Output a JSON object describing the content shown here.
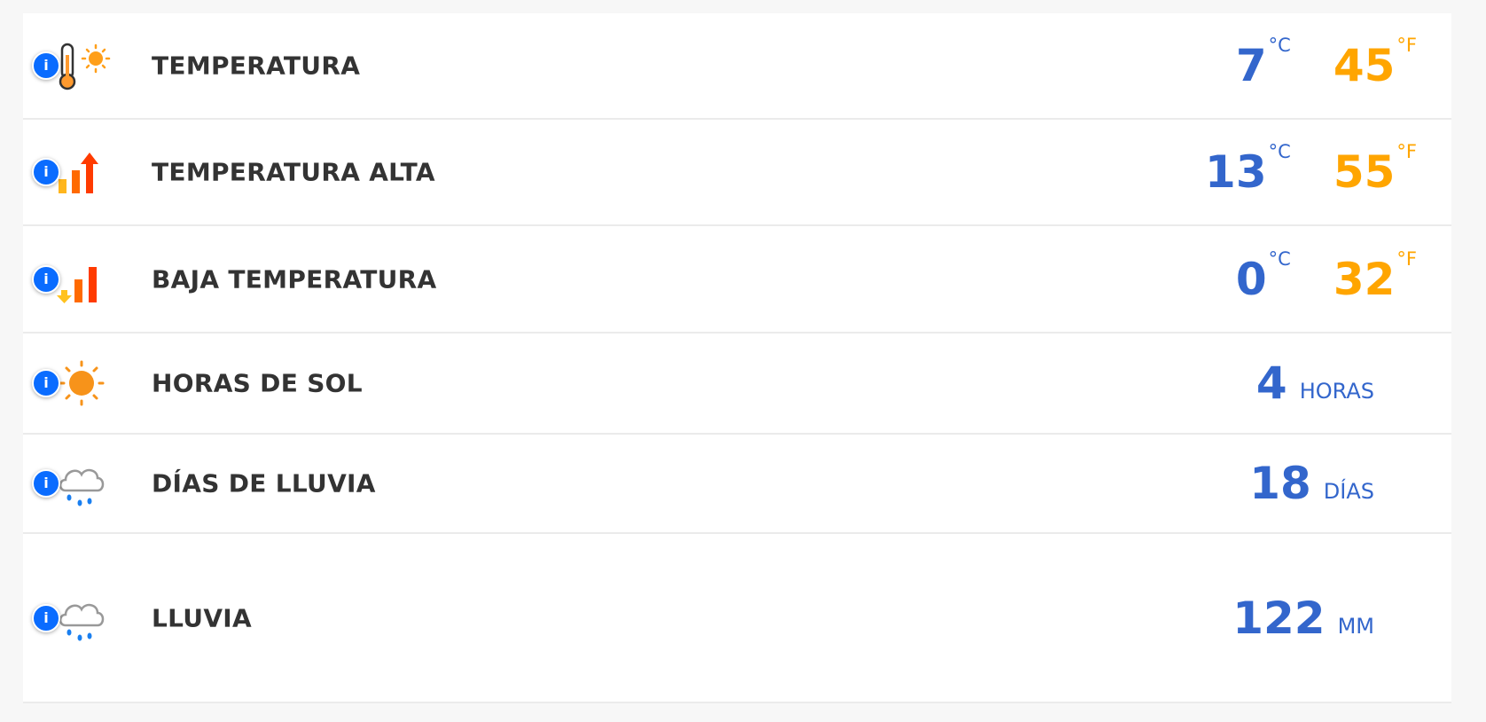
{
  "colors": {
    "celsius": "#3366cc",
    "fahrenheit": "#ffa500",
    "info": "#0a6cff"
  },
  "rows": [
    {
      "icon": "thermometer-sun-icon",
      "label": "TEMPERATURA",
      "celsius": "7",
      "c_unit": "°C",
      "fahrenheit": "45",
      "f_unit": "°F"
    },
    {
      "icon": "temperature-high-icon",
      "label": "TEMPERATURA ALTA",
      "celsius": "13",
      "c_unit": "°C",
      "fahrenheit": "55",
      "f_unit": "°F"
    },
    {
      "icon": "temperature-low-icon",
      "label": "BAJA TEMPERATURA",
      "celsius": "0",
      "c_unit": "°C",
      "fahrenheit": "32",
      "f_unit": "°F"
    },
    {
      "icon": "sun-icon",
      "label": "HORAS DE SOL",
      "value": "4",
      "unit": "HORAS"
    },
    {
      "icon": "rain-cloud-icon",
      "label": "DÍAS DE LLUVIA",
      "value": "18",
      "unit": "DÍAS"
    },
    {
      "icon": "rain-cloud-icon",
      "label": "LLUVIA",
      "value": "122",
      "unit": "MM"
    }
  ],
  "info_glyph": "i"
}
